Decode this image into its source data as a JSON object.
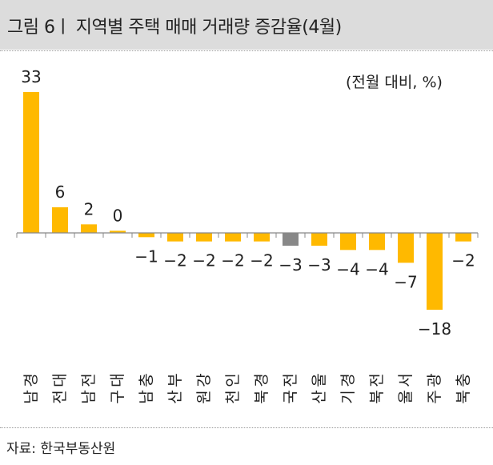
{
  "header": {
    "title": "그림 6ㅣ 지역별 주택 매매 거래량 증감율(4월)"
  },
  "footer": {
    "source": "자료: 한국부동산원"
  },
  "colors": {
    "bar": "#FFB900",
    "highlight": "#888888",
    "axis": "#888888"
  },
  "chart_data": {
    "type": "bar",
    "title": "지역별 주택 매매 거래량 증감율(4월)",
    "unit_label": "(전월 대비, %)",
    "categories": [
      "경남",
      "대전",
      "전남",
      "대구",
      "충남",
      "부산",
      "강원",
      "인천",
      "경북",
      "전국",
      "울산",
      "경기",
      "전북",
      "서울",
      "광주",
      "충북"
    ],
    "values": [
      33,
      6,
      2,
      0.5,
      -1,
      -2,
      -2,
      -2,
      -2,
      -3,
      -3,
      -4,
      -4,
      -7,
      -18,
      -2
    ],
    "labels": [
      "33",
      "6",
      "2",
      "0",
      "−1",
      "−2",
      "−2",
      "−2",
      "−2",
      "−3",
      "−3",
      "−4",
      "−4",
      "−7",
      "−18",
      "−2"
    ],
    "highlight": "전국",
    "ylim": [
      -18,
      33
    ],
    "grid": false
  }
}
